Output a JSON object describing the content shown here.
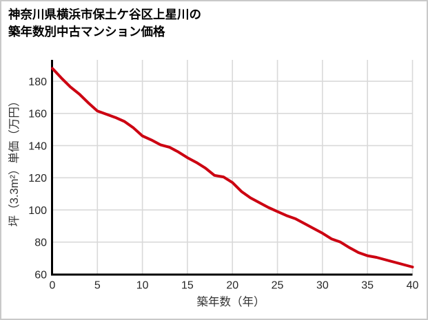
{
  "window": {
    "background": "#ffffff",
    "border_color": "#c9c9c9"
  },
  "title": {
    "line1": "神奈川県横浜市保土ケ谷区上星川の",
    "line2": "築年数別中古マンション価格"
  },
  "chart_data": {
    "type": "line",
    "title": "神奈川県横浜市保土ケ谷区上星川の築年数別中古マンション価格",
    "xlabel": "築年数（年）",
    "ylabel": "坪（3.3m²）単価（万円）",
    "x": [
      0,
      1,
      2,
      3,
      4,
      5,
      6,
      7,
      8,
      9,
      10,
      11,
      12,
      13,
      14,
      15,
      16,
      17,
      18,
      19,
      20,
      21,
      22,
      23,
      24,
      25,
      26,
      27,
      28,
      29,
      30,
      31,
      32,
      33,
      34,
      35,
      36,
      37,
      38,
      39,
      40
    ],
    "values": [
      188,
      182,
      176.5,
      172,
      166.5,
      161.5,
      159.5,
      157.5,
      155,
      151,
      146,
      143.5,
      140.5,
      139,
      136,
      132.5,
      129.5,
      126,
      121.5,
      120.5,
      117,
      111.5,
      107.5,
      104.5,
      101.5,
      99,
      96.5,
      94.5,
      91.5,
      88.5,
      85.5,
      82,
      80,
      76.5,
      73.5,
      71.5,
      70.5,
      69,
      67.5,
      66,
      64.5
    ],
    "xlim": [
      0,
      40
    ],
    "ylim": [
      60,
      193.3
    ],
    "x_ticks": [
      "0",
      "5",
      "10",
      "15",
      "20",
      "25",
      "30",
      "35",
      "40"
    ],
    "x_tick_values": [
      0,
      5,
      10,
      15,
      20,
      25,
      30,
      35,
      40
    ],
    "y_ticks": [
      "60",
      "80",
      "100",
      "120",
      "140",
      "160",
      "180"
    ],
    "y_tick_values": [
      60,
      80,
      100,
      120,
      140,
      160,
      180
    ],
    "grid": true,
    "legend": false,
    "line_color": "#cc0011",
    "grid_color": "#d9d9d9",
    "axis_color": "#000000",
    "tick_label_color": "#262626"
  }
}
